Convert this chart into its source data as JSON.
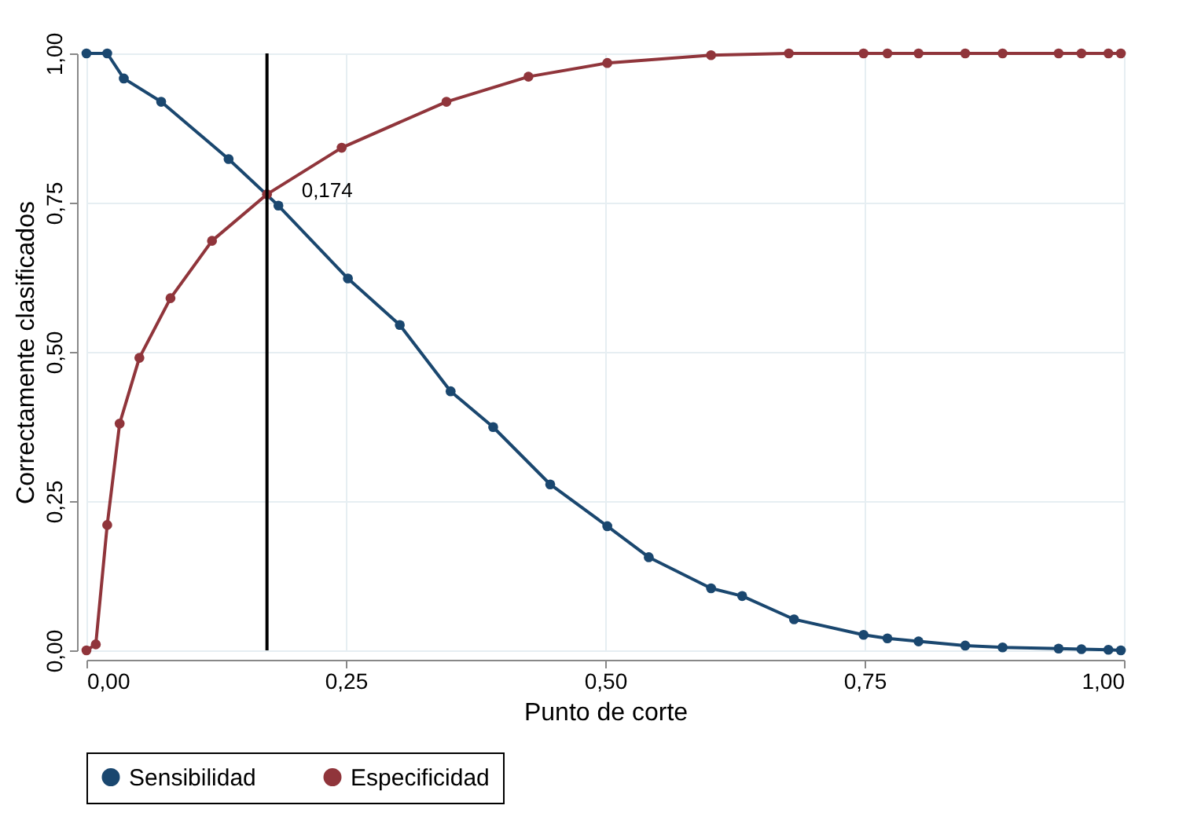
{
  "chart_data": {
    "type": "line",
    "xlabel": "Punto de corte",
    "ylabel": "Correctamente clasificados",
    "xlim": [
      0,
      1
    ],
    "ylim": [
      0,
      1
    ],
    "xticks": [
      {
        "value": 0,
        "label": "0,00"
      },
      {
        "value": 0.25,
        "label": "0,25"
      },
      {
        "value": 0.5,
        "label": "0,50"
      },
      {
        "value": 0.75,
        "label": "0,75"
      },
      {
        "value": 1,
        "label": "1,00"
      }
    ],
    "yticks": [
      {
        "value": 0,
        "label": "0,00"
      },
      {
        "value": 0.25,
        "label": "0,25"
      },
      {
        "value": 0.5,
        "label": "0,50"
      },
      {
        "value": 0.75,
        "label": "0,75"
      },
      {
        "value": 1,
        "label": "1,00"
      }
    ],
    "grid": true,
    "legend": "bottom",
    "marker": "circle",
    "line_style": "solid",
    "ref_lines": [
      {
        "axis": "x",
        "value": 0.174,
        "label": "0,174",
        "color": "#000000"
      }
    ],
    "series": [
      {
        "name": "Sensibilidad",
        "color": "#1a476f",
        "x": [
          0,
          0.02,
          0.036,
          0.072,
          0.137,
          0.185,
          0.252,
          0.302,
          0.351,
          0.392,
          0.447,
          0.502,
          0.542,
          0.602,
          0.632,
          0.682,
          0.749,
          0.772,
          0.802,
          0.847,
          0.883,
          0.937,
          0.959,
          0.985,
          0.997
        ],
        "values": [
          1,
          1,
          0.958,
          0.919,
          0.823,
          0.745,
          0.623,
          0.545,
          0.434,
          0.374,
          0.278,
          0.208,
          0.156,
          0.104,
          0.091,
          0.052,
          0.026,
          0.02,
          0.015,
          0.008,
          0.005,
          0.003,
          0.002,
          0.001,
          0
        ]
      },
      {
        "name": "Especificidad",
        "color": "#90353b",
        "x": [
          0,
          0.009,
          0.02,
          0.032,
          0.051,
          0.081,
          0.121,
          0.174,
          0.246,
          0.347,
          0.426,
          0.502,
          0.602,
          0.677,
          0.749,
          0.772,
          0.802,
          0.847,
          0.883,
          0.937,
          0.959,
          0.985,
          0.997
        ],
        "values": [
          0,
          0.01,
          0.21,
          0.38,
          0.49,
          0.59,
          0.686,
          0.764,
          0.842,
          0.919,
          0.961,
          0.984,
          0.997,
          1,
          1,
          1,
          1,
          1,
          1,
          1,
          1,
          1,
          1
        ]
      }
    ]
  }
}
